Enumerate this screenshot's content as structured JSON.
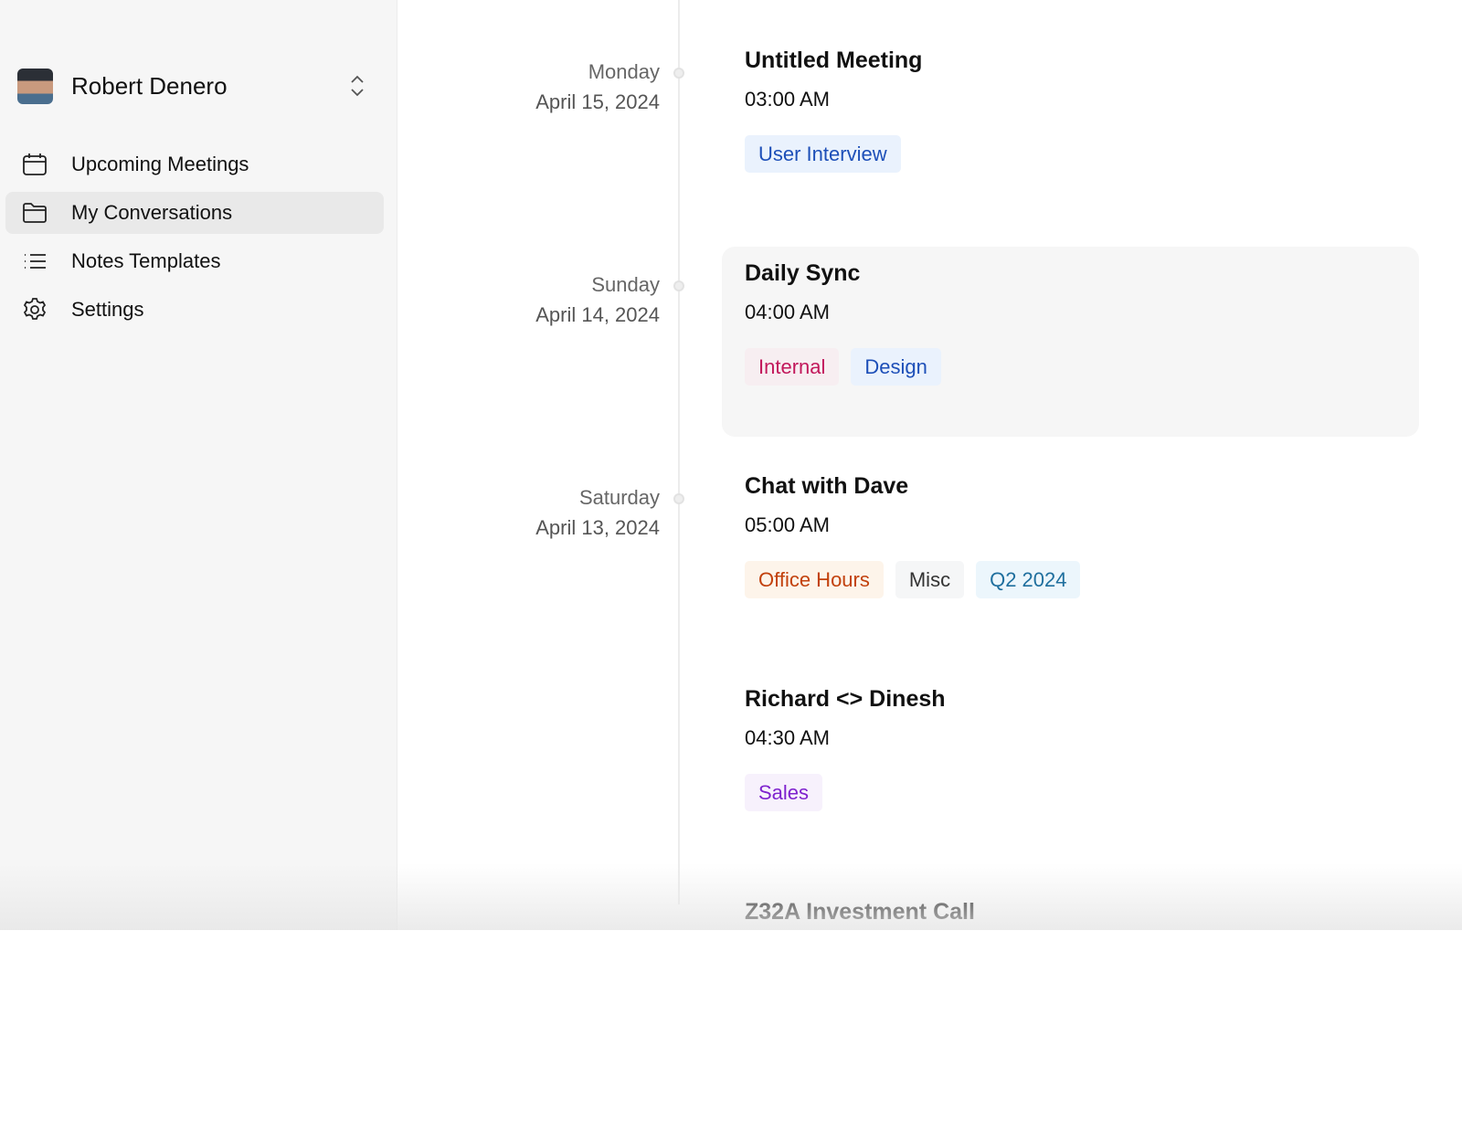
{
  "user": {
    "name": "Robert Denero"
  },
  "nav": [
    {
      "label": "Upcoming Meetings",
      "icon": "calendar-icon",
      "active": false
    },
    {
      "label": "My Conversations",
      "icon": "folder-icon",
      "active": true
    },
    {
      "label": "Notes Templates",
      "icon": "list-icon",
      "active": false
    },
    {
      "label": "Settings",
      "icon": "gear-icon",
      "active": false
    }
  ],
  "meetings": [
    {
      "day": "Monday",
      "date": "April 15, 2024",
      "title": "Untitled Meeting",
      "time": "03:00 AM",
      "tags": [
        {
          "label": "User Interview",
          "color": "#1d4fb8",
          "bg": "#eaf2fd"
        }
      ]
    },
    {
      "day": "Sunday",
      "date": "April 14, 2024",
      "title": "Daily Sync",
      "time": "04:00 AM",
      "highlighted": true,
      "tags": [
        {
          "label": "Internal",
          "color": "#c2185b",
          "bg": "#f7eef1"
        },
        {
          "label": "Design",
          "color": "#1d4fb8",
          "bg": "#eaf2fd"
        }
      ]
    },
    {
      "day": "Saturday",
      "date": "April 13, 2024",
      "title": "Chat with Dave",
      "time": "05:00 AM",
      "tags": [
        {
          "label": "Office Hours",
          "color": "#c2410c",
          "bg": "#fdf4ea"
        },
        {
          "label": "Misc",
          "color": "#333333",
          "bg": "#f5f6f7"
        },
        {
          "label": "Q2 2024",
          "color": "#1f6f9e",
          "bg": "#ecf6fc"
        }
      ]
    },
    {
      "day": "",
      "date": "",
      "title": "Richard <> Dinesh",
      "time": "04:30 AM",
      "tags": [
        {
          "label": "Sales",
          "color": "#7e22ce",
          "bg": "#f7f1fc"
        }
      ]
    },
    {
      "day": "",
      "date": "",
      "title": "Z32A Investment Call",
      "time": "",
      "tags": []
    }
  ]
}
